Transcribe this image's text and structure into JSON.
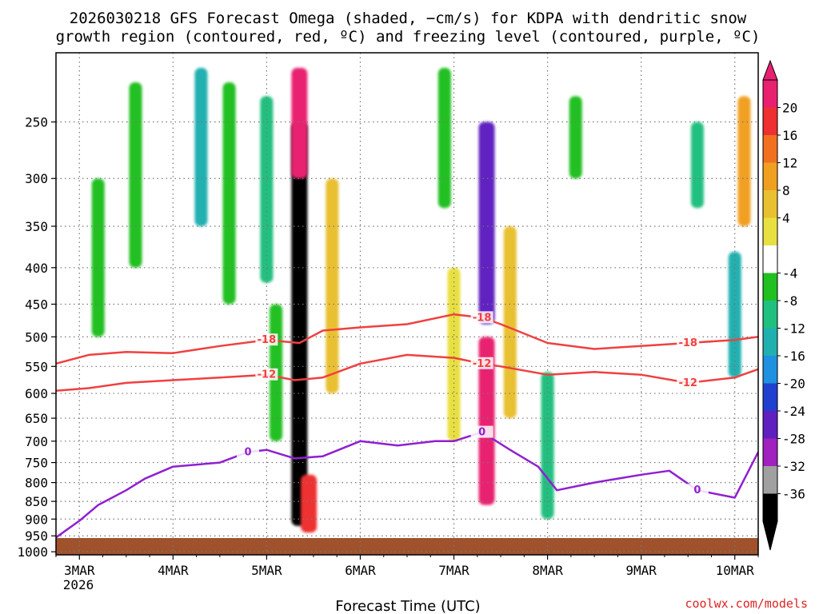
{
  "chart_data": {
    "type": "heatmap",
    "title_line1": "2026030218 GFS Forecast Omega (shaded, −cm/s) for KDPA with dendritic snow",
    "title_line2": "growth region (contoured, red, ºC) and freezing level (contoured, purple, ºC)",
    "xlabel": "Forecast Time (UTC)",
    "ylabel": "",
    "credit": "coolwx.com/models",
    "x_ticks": [
      "3MAR",
      "4MAR",
      "5MAR",
      "6MAR",
      "7MAR",
      "8MAR",
      "9MAR",
      "10MAR"
    ],
    "x_year": "2026",
    "x_range_days": [
      2.75,
      10.25
    ],
    "y_ticks": [
      250,
      300,
      350,
      400,
      450,
      500,
      550,
      600,
      650,
      700,
      750,
      800,
      850,
      900,
      950,
      1000
    ],
    "ylim": [
      200,
      1010
    ],
    "colorbar": {
      "labels": [
        "20",
        "16",
        "12",
        "8",
        "4",
        "-4",
        "-8",
        "-12",
        "-16",
        "-20",
        "-24",
        "-28",
        "-32",
        "-36"
      ],
      "colors": [
        "#e8206f",
        "#ee3030",
        "#f07020",
        "#f0a020",
        "#e8c030",
        "#e8e040",
        "#ffffff",
        "#20c020",
        "#20c080",
        "#20b0b0",
        "#2090e0",
        "#2040d0",
        "#6020c0",
        "#a020c0",
        "#a0a0a0",
        "#000000"
      ]
    },
    "contours": [
      {
        "name": "-18C (dendritic top)",
        "color": "#f04040",
        "label": "-18",
        "points": [
          [
            2.75,
            545
          ],
          [
            3.1,
            530
          ],
          [
            3.5,
            525
          ],
          [
            4.0,
            527
          ],
          [
            4.5,
            515
          ],
          [
            5.0,
            505
          ],
          [
            5.35,
            510
          ],
          [
            5.6,
            490
          ],
          [
            6.0,
            485
          ],
          [
            6.5,
            480
          ],
          [
            7.0,
            465
          ],
          [
            7.3,
            470
          ],
          [
            7.5,
            480
          ],
          [
            8.0,
            510
          ],
          [
            8.5,
            520
          ],
          [
            9.0,
            515
          ],
          [
            9.5,
            510
          ],
          [
            10.0,
            505
          ],
          [
            10.25,
            500
          ]
        ]
      },
      {
        "name": "-12C (dendritic bottom)",
        "color": "#f04040",
        "label": "-12",
        "points": [
          [
            2.75,
            595
          ],
          [
            3.1,
            590
          ],
          [
            3.5,
            580
          ],
          [
            4.0,
            575
          ],
          [
            4.5,
            570
          ],
          [
            5.0,
            565
          ],
          [
            5.3,
            575
          ],
          [
            5.6,
            570
          ],
          [
            6.0,
            545
          ],
          [
            6.5,
            530
          ],
          [
            7.0,
            535
          ],
          [
            7.3,
            545
          ],
          [
            7.5,
            550
          ],
          [
            8.0,
            565
          ],
          [
            8.5,
            560
          ],
          [
            9.0,
            565
          ],
          [
            9.5,
            580
          ],
          [
            10.0,
            570
          ],
          [
            10.25,
            555
          ]
        ]
      },
      {
        "name": "0C freezing level",
        "color": "#9020d0",
        "label": "0",
        "points": [
          [
            2.75,
            955
          ],
          [
            3.0,
            905
          ],
          [
            3.2,
            860
          ],
          [
            3.5,
            820
          ],
          [
            3.7,
            790
          ],
          [
            4.0,
            760
          ],
          [
            4.5,
            750
          ],
          [
            4.8,
            725
          ],
          [
            5.0,
            720
          ],
          [
            5.3,
            740
          ],
          [
            5.6,
            735
          ],
          [
            6.0,
            700
          ],
          [
            6.4,
            710
          ],
          [
            6.8,
            700
          ],
          [
            7.0,
            700
          ],
          [
            7.3,
            680
          ],
          [
            7.6,
            720
          ],
          [
            7.9,
            760
          ],
          [
            8.1,
            820
          ],
          [
            8.5,
            800
          ],
          [
            9.0,
            780
          ],
          [
            9.3,
            770
          ],
          [
            9.6,
            820
          ],
          [
            10.0,
            840
          ],
          [
            10.25,
            725
          ]
        ]
      }
    ],
    "omega_cells": [
      {
        "day": 5.35,
        "p_top": 250,
        "p_bot": 920,
        "value": -34
      },
      {
        "day": 5.35,
        "p_top": 210,
        "p_bot": 300,
        "value": 18
      },
      {
        "day": 5.45,
        "p_top": 780,
        "p_bot": 940,
        "value": 16
      },
      {
        "day": 7.35,
        "p_top": 250,
        "p_bot": 480,
        "value": -24
      },
      {
        "day": 7.35,
        "p_top": 500,
        "p_bot": 860,
        "value": 18
      },
      {
        "day": 3.2,
        "p_top": 300,
        "p_bot": 500,
        "value": -8
      },
      {
        "day": 3.6,
        "p_top": 220,
        "p_bot": 400,
        "value": -8
      },
      {
        "day": 4.3,
        "p_top": 210,
        "p_bot": 350,
        "value": -12
      },
      {
        "day": 4.6,
        "p_top": 220,
        "p_bot": 450,
        "value": -8
      },
      {
        "day": 5.0,
        "p_top": 230,
        "p_bot": 420,
        "value": -10
      },
      {
        "day": 5.7,
        "p_top": 300,
        "p_bot": 600,
        "value": 6
      },
      {
        "day": 5.1,
        "p_top": 450,
        "p_bot": 700,
        "value": -8
      },
      {
        "day": 6.9,
        "p_top": 210,
        "p_bot": 330,
        "value": -8
      },
      {
        "day": 7.6,
        "p_top": 350,
        "p_bot": 650,
        "value": 6
      },
      {
        "day": 7.0,
        "p_top": 400,
        "p_bot": 700,
        "value": 5
      },
      {
        "day": 8.0,
        "p_top": 560,
        "p_bot": 900,
        "value": -10
      },
      {
        "day": 8.3,
        "p_top": 230,
        "p_bot": 300,
        "value": -8
      },
      {
        "day": 9.6,
        "p_top": 250,
        "p_bot": 330,
        "value": -10
      },
      {
        "day": 10.0,
        "p_top": 380,
        "p_bot": 570,
        "value": -12
      },
      {
        "day": 10.1,
        "p_top": 230,
        "p_bot": 350,
        "value": 8
      }
    ]
  }
}
